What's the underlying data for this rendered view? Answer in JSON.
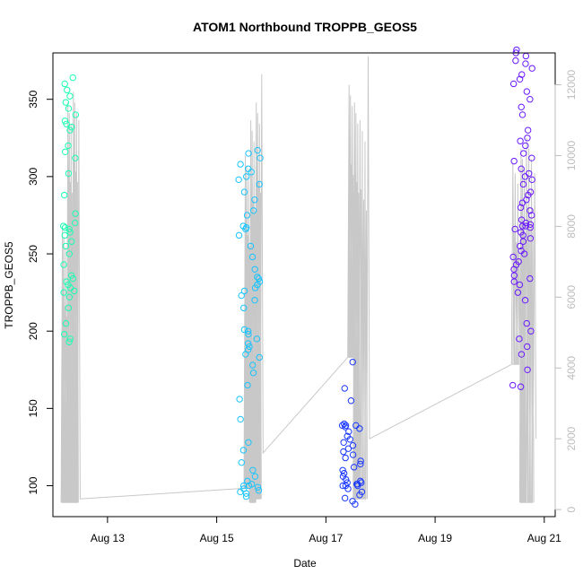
{
  "chart_data": {
    "type": "scatter",
    "title": "ATOM1 Northbound TROPPB_GEOS5",
    "xlabel": "Date",
    "ylabel": "TROPPB_GEOS5",
    "x_ticks": [
      "Aug 13",
      "Aug 15",
      "Aug 17",
      "Aug 19",
      "Aug 21"
    ],
    "y_ticks_left": [
      "100",
      "150",
      "200",
      "250",
      "300",
      "350"
    ],
    "y_ticks_right": [
      "0",
      "2000",
      "4000",
      "6000",
      "8000",
      "10000",
      "12000"
    ],
    "x_range_days": [
      12.0,
      21.2
    ],
    "y_range_left": [
      80,
      380
    ],
    "y_range_right": [
      -200,
      12900
    ],
    "secondary_series_color": "#c8c8c8",
    "groups": [
      {
        "color": "#19ffb0",
        "x_center": 12.3,
        "x_spread": 0.12,
        "y_values": [
          193,
          195,
          198,
          205,
          215,
          222,
          225,
          226,
          228,
          230,
          232,
          234,
          236,
          243,
          250,
          255,
          258,
          262,
          264,
          266,
          267,
          268,
          270,
          276,
          288,
          302,
          312,
          316,
          320,
          330,
          332,
          334,
          336,
          340,
          344,
          348,
          352,
          356,
          360,
          364
        ]
      },
      {
        "color": "#19c4ff",
        "x_center": 15.6,
        "x_spread": 0.2,
        "y_values": [
          93,
          95,
          96,
          97,
          98,
          99,
          100,
          100,
          101,
          103,
          106,
          110,
          115,
          123,
          128,
          143,
          156,
          165,
          173,
          178,
          183,
          185,
          188,
          190,
          192,
          195,
          198,
          200,
          201,
          215,
          220,
          223,
          226,
          228,
          230,
          232,
          234,
          235,
          240,
          248,
          255,
          262,
          266,
          267,
          268,
          275,
          278,
          285,
          290,
          295,
          298,
          300,
          303,
          305,
          308,
          312,
          315,
          317
        ]
      },
      {
        "color": "#1937ff",
        "x_center": 17.5,
        "x_spread": 0.2,
        "y_values": [
          88,
          90,
          92,
          94,
          96,
          98,
          100,
          100,
          100,
          101,
          101,
          102,
          102,
          103,
          104,
          106,
          108,
          110,
          112,
          114,
          116,
          118,
          120,
          122,
          124,
          126,
          128,
          130,
          132,
          135,
          137,
          138,
          139,
          139,
          139,
          140,
          155,
          163,
          180
        ]
      },
      {
        "color": "#6a19ff",
        "x_center": 20.6,
        "x_spread": 0.18,
        "y_values": [
          164,
          165,
          175,
          185,
          190,
          195,
          200,
          205,
          220,
          225,
          230,
          232,
          234,
          236,
          240,
          243,
          245,
          248,
          250,
          252,
          255,
          258,
          260,
          262,
          264,
          266,
          267,
          268,
          268,
          269,
          270,
          272,
          275,
          278,
          280,
          283,
          285,
          288,
          290,
          295,
          298,
          300,
          302,
          305,
          310,
          312,
          315,
          320,
          323,
          325,
          330,
          340,
          345,
          350,
          355,
          360,
          363,
          366,
          370,
          373,
          375,
          378,
          380,
          382
        ]
      }
    ],
    "secondary_trace": [
      {
        "day": 12.15,
        "altitude": 200,
        "peak": 8000
      },
      {
        "day": 12.25,
        "altitude": 200,
        "peak": 11500
      },
      {
        "day": 12.35,
        "altitude": 200,
        "peak": 11800
      },
      {
        "day": 12.45,
        "altitude": 300,
        "peak": 11000
      },
      {
        "day": 15.5,
        "altitude": 600,
        "peak": 10000
      },
      {
        "day": 15.6,
        "altitude": 200,
        "peak": 11000
      },
      {
        "day": 15.7,
        "altitude": 300,
        "peak": 11500
      },
      {
        "day": 15.8,
        "altitude": 1600,
        "peak": 12300
      },
      {
        "day": 17.4,
        "altitude": 4300,
        "peak": 12000
      },
      {
        "day": 17.5,
        "altitude": 300,
        "peak": 11500
      },
      {
        "day": 17.6,
        "altitude": 300,
        "peak": 11000
      },
      {
        "day": 17.75,
        "altitude": 2000,
        "peak": 12800
      },
      {
        "day": 20.4,
        "altitude": 4100,
        "peak": 9800
      },
      {
        "day": 20.55,
        "altitude": 200,
        "peak": 10200
      },
      {
        "day": 20.65,
        "altitude": 200,
        "peak": 10500
      },
      {
        "day": 20.8,
        "altitude": 2000,
        "peak": 9500
      }
    ],
    "legend": "none"
  }
}
